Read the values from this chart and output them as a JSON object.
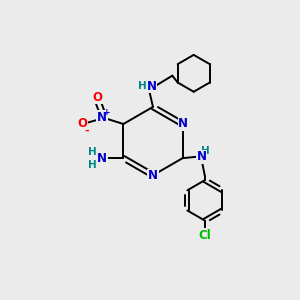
{
  "bg_color": "#ebebeb",
  "atom_colors": {
    "C": "#000000",
    "N": "#0000cc",
    "O": "#ff0000",
    "Cl": "#00bb00",
    "H": "#008888"
  },
  "figsize": [
    3.0,
    3.0
  ],
  "dpi": 100
}
